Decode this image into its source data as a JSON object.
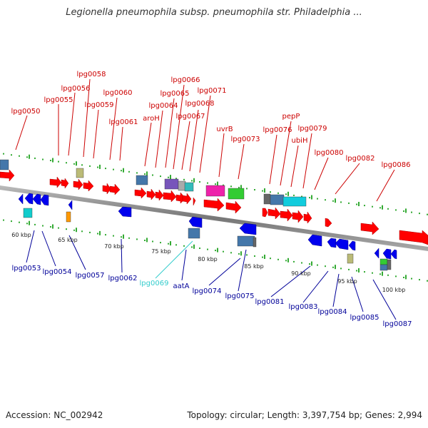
{
  "title": "Legionella pneumophila subsp. pneumophila str. Philadelphia ...",
  "footer": {
    "accession": "Accession: NC_002942",
    "stats": "Topology: circular; Length: 3,397,754 bp; Genes: 2,994"
  },
  "colors": {
    "forward_label": "#cc0000",
    "reverse_label": "#000099",
    "highlight_label": "#33cccc",
    "forward_gene": "#ff0000",
    "reverse_gene": "#0000ee",
    "backbone": "#888888",
    "tick": "#008800"
  },
  "ticks": [
    {
      "label": "60 kbp"
    },
    {
      "label": "65 kbp"
    },
    {
      "label": "70 kbp"
    },
    {
      "label": "75 kbp"
    },
    {
      "label": "80 kbp"
    },
    {
      "label": "85 kbp"
    },
    {
      "label": "90 kbp"
    },
    {
      "label": "95 kbp"
    },
    {
      "label": "100 kbp"
    }
  ],
  "forward_labels": [
    "lpg0050",
    "lpg0055",
    "lpg0056",
    "lpg0058",
    "lpg0059",
    "lpg0060",
    "lpg0061",
    "aroH",
    "lpg0064",
    "lpg0065",
    "lpg0066",
    "lpg0067",
    "lpg0068",
    "lpg0071",
    "uvrB",
    "lpg0073",
    "lpg0076",
    "pepP",
    "ubiH",
    "lpg0079",
    "lpg0080",
    "lpg0082",
    "lpg0086"
  ],
  "reverse_labels": [
    "lpg0053",
    "lpg0054",
    "lpg0057",
    "lpg0062",
    "lpg0069",
    "aatA",
    "lpg0074",
    "lpg0075",
    "lpg0081",
    "lpg0083",
    "lpg0084",
    "lpg0085",
    "lpg0087"
  ],
  "highlight_label": "lpg0069"
}
